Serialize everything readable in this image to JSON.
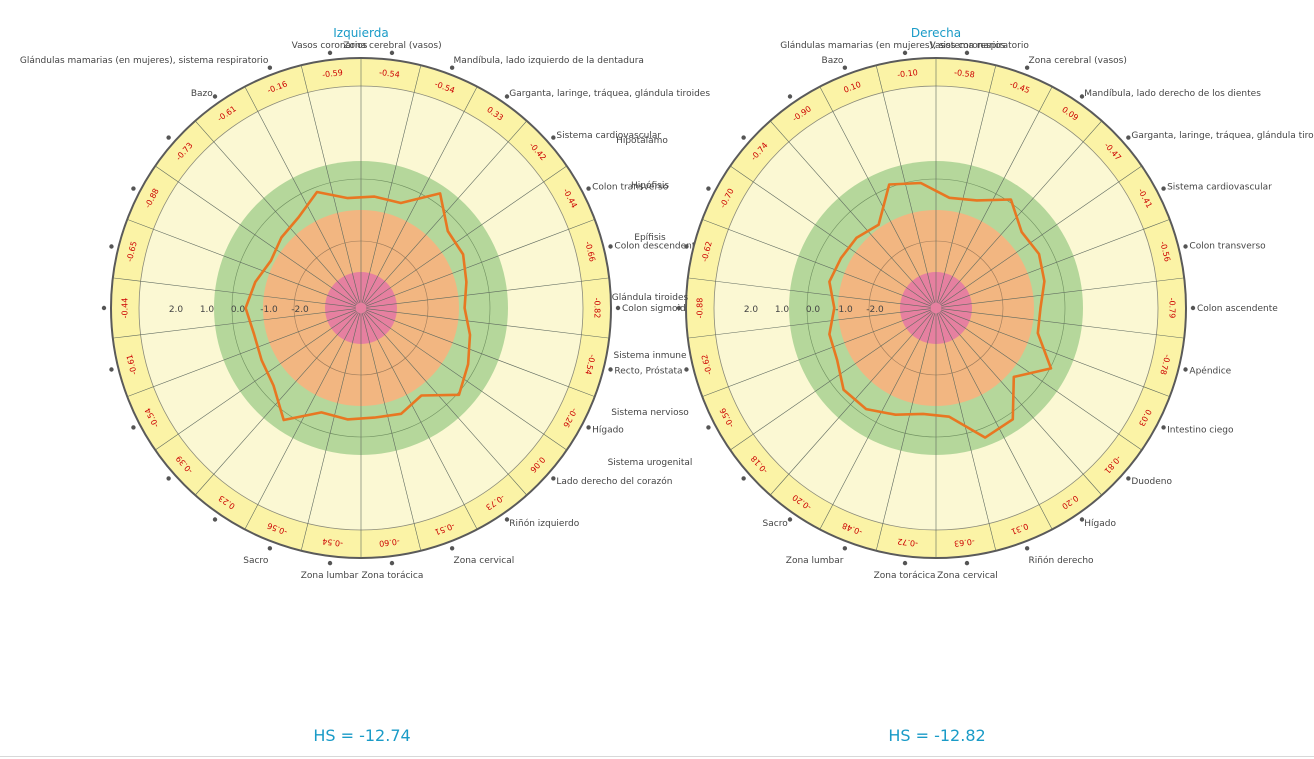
{
  "chart_data": [
    {
      "type": "radar",
      "title": "Izquierda",
      "rlim": [
        -3,
        3
      ],
      "ring_tick_labels": [
        "2.0",
        "1.0",
        "0.0",
        "-1.0",
        "-2.0"
      ],
      "zone_colors": [
        "#e680a0",
        "#f2b681",
        "#b5d79b",
        "#fbf8d3",
        "#fbf3a6"
      ],
      "line_color": "#e87722",
      "value_color": "#cc0000",
      "categories": [
        "Vasos coronarios",
        "Glándulas mamarias (en mujeres), sistema respiratorio",
        "Bazo",
        "",
        "",
        "",
        "",
        "",
        "",
        "",
        "",
        "Sacro",
        "Zona lumbar",
        "Zona torácica",
        "Zona cervical",
        "Riñón izquierdo",
        "Lado derecho del corazón",
        "Hígado",
        "Recto, Próstata",
        "Colon sigmoide",
        "Colon descendente",
        "Colon transverso",
        "Sistema cardiovascular",
        "Garganta, laringe, tráquea, glándula tiroides",
        "Mandíbula, lado izquierdo de la dentadura",
        "Zona cerebral (vasos)"
      ],
      "values": [
        -0.59,
        -0.16,
        -0.61,
        -0.73,
        -0.88,
        -0.65,
        -0.44,
        -0.61,
        -0.54,
        -0.39,
        0.23,
        -0.56,
        -0.54,
        -0.6,
        -0.51,
        -0.73,
        0.06,
        -0.26,
        -0.54,
        -0.82,
        -0.66,
        -0.44,
        -0.42,
        0.33,
        -0.54,
        -0.54
      ],
      "value_labels": [
        "-0.59",
        "-0.16",
        "-0.61",
        "-0.73",
        "-0.88",
        "-0.65",
        "-0.44",
        "-0.61",
        "-0.54",
        "-0.39",
        "0.23",
        "-0.56",
        "-0.54",
        "-0.60",
        "-0.51",
        "-0.73",
        "0.06",
        "-0.26",
        "-0.54",
        "-0.82",
        "-0.66",
        "-0.44",
        "-0.42",
        "0.33",
        "-0.54",
        "-0.54"
      ],
      "hs": "HS = -12.74"
    },
    {
      "type": "radar",
      "title": "Derecha",
      "rlim": [
        -3,
        3
      ],
      "ring_tick_labels": [
        "2.0",
        "1.0",
        "0.0",
        "-1.0",
        "-2.0"
      ],
      "zone_colors": [
        "#e680a0",
        "#f2b681",
        "#b5d79b",
        "#fbf8d3",
        "#fbf3a6"
      ],
      "line_color": "#e87722",
      "value_color": "#cc0000",
      "categories": [
        "Vasos coronarios",
        "Zona cerebral (vasos)",
        "Mandíbula, lado derecho de los dientes",
        "Garganta, laringe, tráquea, glándula tiroides",
        "Sistema cardiovascular",
        "Colon transverso",
        "Colon ascendente",
        "Apéndice",
        "Intestino ciego",
        "Duodeno",
        "Hígado",
        "Riñón derecho",
        "Zona cervical",
        "Zona torácica",
        "Zona lumbar",
        "Sacro",
        "",
        "",
        "",
        "",
        "",
        "",
        "",
        "",
        "Bazo",
        "Glándulas mamarias (en mujeres), sistema respiratorio"
      ],
      "values": [
        -0.58,
        -0.45,
        0.09,
        -0.47,
        -0.41,
        -0.56,
        -0.79,
        -0.78,
        0.03,
        -0.81,
        0.2,
        0.31,
        -0.63,
        -0.72,
        -0.48,
        -0.2,
        -0.18,
        -0.56,
        -0.62,
        -0.88,
        -0.62,
        -0.7,
        -0.74,
        -0.9,
        0.1,
        -0.1
      ],
      "value_labels": [
        "-0.58",
        "-0.45",
        "0.09",
        "-0.47",
        "-0.41",
        "-0.56",
        "-0.79",
        "-0.78",
        "0.03",
        "-0.81",
        "0.20",
        "0.31",
        "-0.63",
        "-0.72",
        "-0.48",
        "-0.20",
        "-0.18",
        "-0.56",
        "-0.62",
        "-0.88",
        "-0.62",
        "-0.70",
        "-0.74",
        "-0.90",
        "0.10",
        "-0.10"
      ],
      "hs": "HS = -12.82"
    }
  ],
  "center_labels": [
    "Hipotálamo",
    "Hipófisis",
    "Epífisis",
    "Glándula tiroides",
    "Sistema inmune",
    "Sistema nervioso",
    "Sistema urogenital"
  ]
}
